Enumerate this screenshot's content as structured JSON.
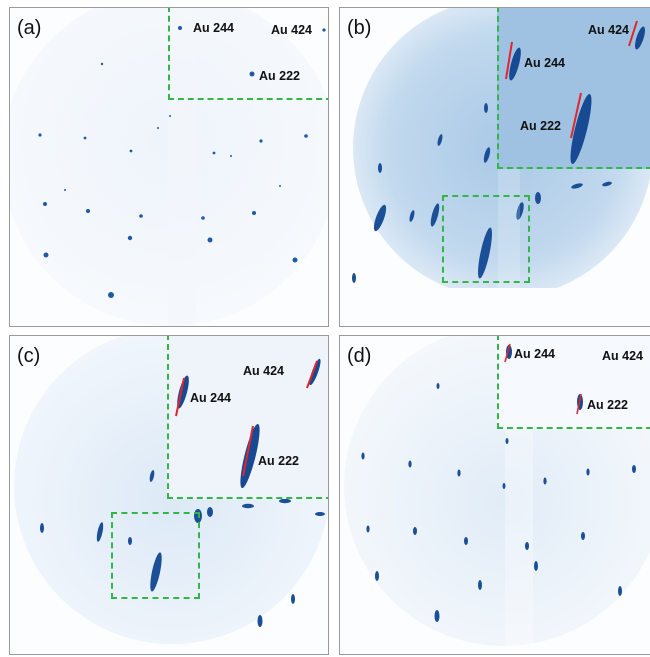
{
  "panels": [
    {
      "label": "(a)",
      "spots": {
        "au244": "Au 244",
        "au424": "Au 424",
        "au222": "Au 222"
      }
    },
    {
      "label": "(b)",
      "spots": {
        "au244": "Au 244",
        "au424": "Au 424",
        "au222": "Au 222"
      }
    },
    {
      "label": "(c)",
      "spots": {
        "au244": "Au 244",
        "au424": "Au 424",
        "au222": "Au 222"
      }
    },
    {
      "label": "(d)",
      "spots": {
        "au244": "Au 244",
        "au424": "Au 424",
        "au222": "Au 222"
      }
    }
  ],
  "colors": {
    "frame": "#9a9a9a",
    "inset_border": "#34b54a",
    "spot": "#1a4f9a",
    "streak_marker": "#e0262d",
    "background_tint": "#c9ddf0"
  }
}
